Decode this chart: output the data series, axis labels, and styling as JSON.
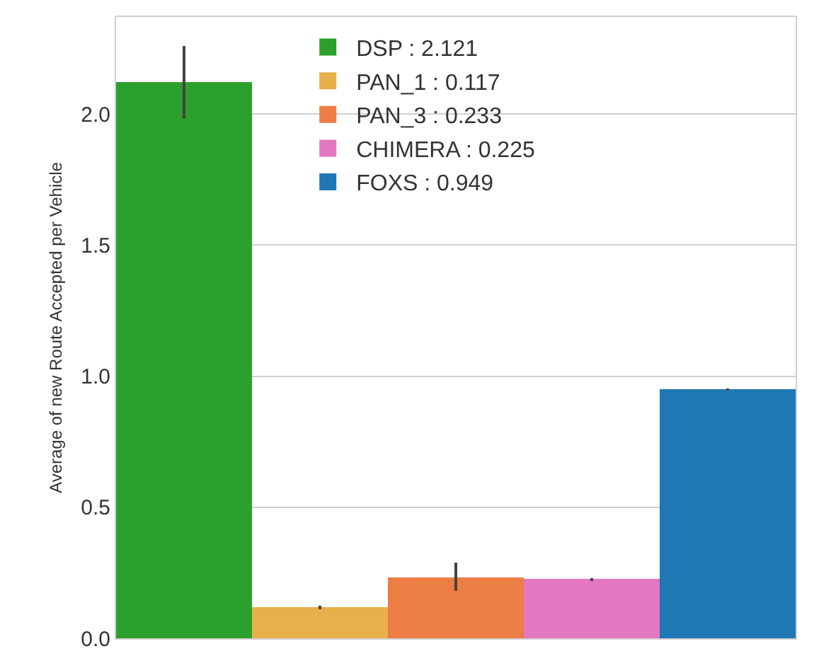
{
  "chart_data": {
    "type": "bar",
    "ylabel": "Average of new Route Accepted per Vehicle",
    "categories": [
      null
    ],
    "series": [
      {
        "name": "DSP : 2.121",
        "color": "#2ca02c",
        "values": [
          2.121
        ],
        "errors": [
          [
            1.98,
            2.26
          ]
        ]
      },
      {
        "name": "PAN_1 : 0.117",
        "color": "#e8b04a",
        "values": [
          0.117
        ],
        "errors": [
          [
            0.11,
            0.125
          ]
        ]
      },
      {
        "name": "PAN_3 : 0.233",
        "color": "#ec7d45",
        "values": [
          0.233
        ],
        "errors": [
          [
            0.18,
            0.29
          ]
        ]
      },
      {
        "name": "CHIMERA : 0.225",
        "color": "#e377c2",
        "values": [
          0.225
        ],
        "errors": [
          [
            0.22,
            0.23
          ]
        ]
      },
      {
        "name": "FOXS : 0.949",
        "color": "#1f77b4",
        "values": [
          0.949
        ],
        "errors": [
          [
            0.945,
            0.953
          ]
        ]
      }
    ],
    "ylim": [
      0,
      2.37
    ],
    "yticks": [
      {
        "value": 0,
        "label": "0.0"
      },
      {
        "value": 0.5,
        "label": "0.5"
      },
      {
        "value": 1,
        "label": "1.0"
      },
      {
        "value": 1.5,
        "label": "1.5"
      },
      {
        "value": 2,
        "label": "2.0"
      }
    ],
    "grid": "y",
    "legend": "top right"
  }
}
